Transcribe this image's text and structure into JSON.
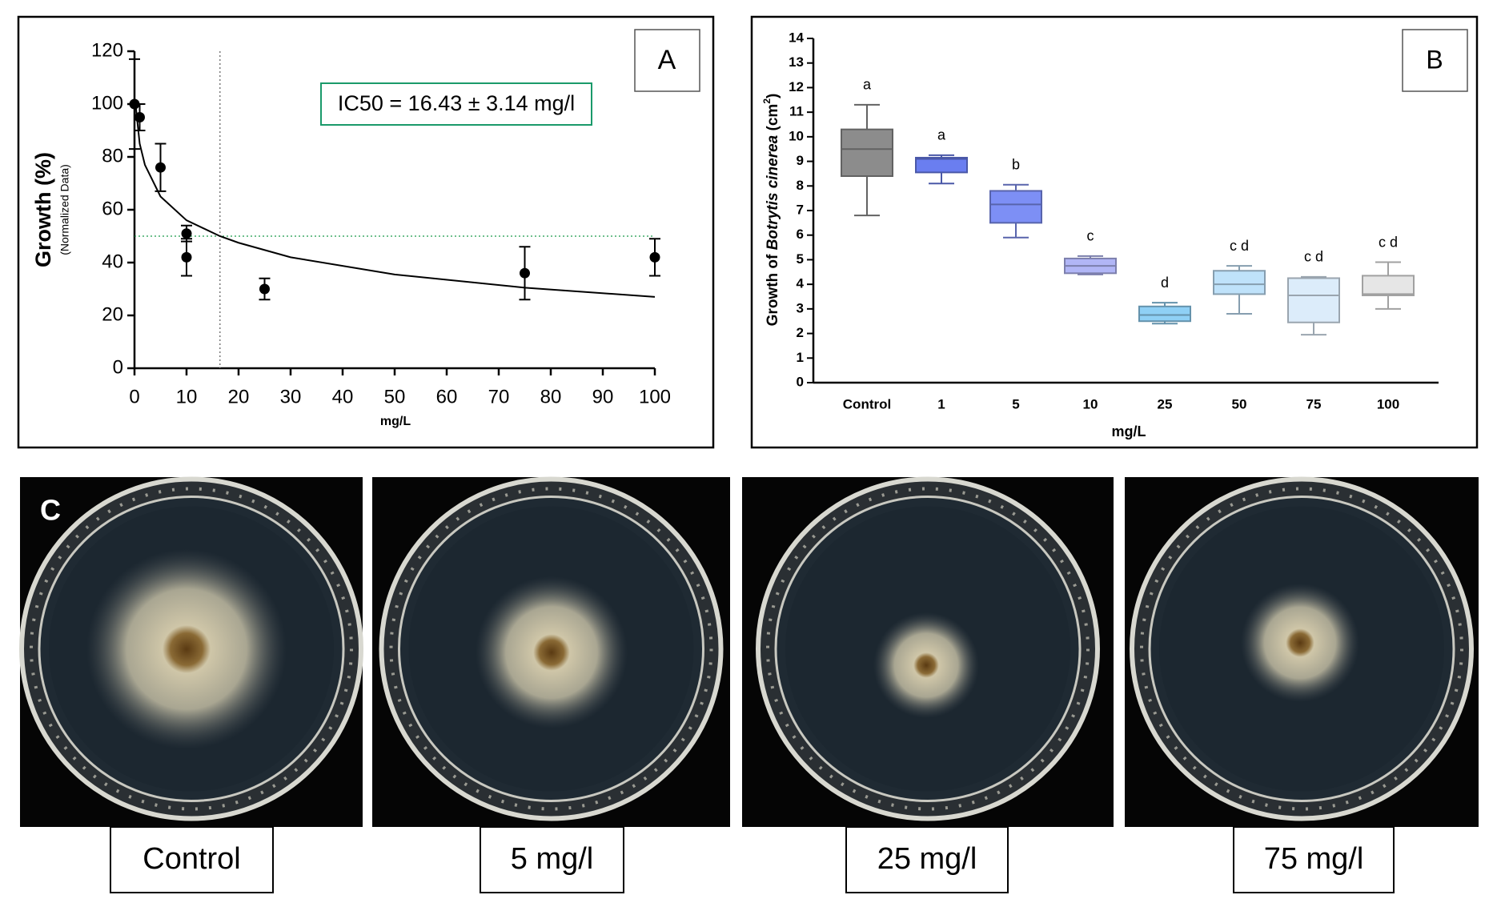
{
  "chart_data": [
    {
      "type": "scatter",
      "panel": "A",
      "ylabel": "Growth (%)",
      "ylabel_sub": "(Normalized Data)",
      "xlabel": "mg/L",
      "annotation": "IC50 = 16.43 ± 3.14 mg/l",
      "x": [
        0,
        1,
        5,
        10,
        10,
        25,
        75,
        100
      ],
      "values": [
        100,
        95,
        76,
        51,
        42,
        30,
        36,
        42
      ],
      "errors": [
        17,
        5,
        9,
        3,
        7,
        4,
        10,
        7
      ],
      "color": "#000000",
      "fit": {
        "x": [
          0.2,
          1,
          2,
          5,
          10,
          16.43,
          20,
          30,
          50,
          75,
          100
        ],
        "values": [
          100,
          85,
          77,
          65,
          56,
          50,
          47.5,
          42,
          35.5,
          30.5,
          27
        ]
      },
      "ref_x": 16.43,
      "ref_y": 50,
      "xlim": [
        0,
        100
      ],
      "ylim": [
        0,
        120
      ],
      "xticks": [
        0,
        10,
        20,
        30,
        40,
        50,
        60,
        70,
        80,
        90,
        100
      ],
      "yticks": [
        0,
        20,
        40,
        60,
        80,
        100,
        120
      ]
    },
    {
      "type": "box",
      "panel": "B",
      "ylabel": [
        "Growth of ",
        "Botrytis cinerea",
        " (cm",
        "2",
        ")"
      ],
      "xlabel": "mg/L",
      "categories": [
        "Control",
        "1",
        "5",
        "10",
        "25",
        "50",
        "75",
        "100"
      ],
      "min": [
        6.8,
        8.1,
        5.9,
        4.4,
        2.4,
        2.8,
        1.95,
        3.0
      ],
      "q1": [
        8.4,
        8.55,
        6.5,
        4.45,
        2.5,
        3.6,
        2.45,
        3.55
      ],
      "median": [
        9.5,
        9.1,
        7.25,
        4.75,
        2.75,
        4.0,
        3.55,
        3.6
      ],
      "q3": [
        10.3,
        9.15,
        7.8,
        5.05,
        3.1,
        4.55,
        4.25,
        4.35
      ],
      "max": [
        11.3,
        9.25,
        8.05,
        5.15,
        3.25,
        4.75,
        4.3,
        4.9
      ],
      "letters": [
        "a",
        "a",
        "b",
        "c",
        "d",
        "c d",
        "c d",
        "c d"
      ],
      "colors": [
        "#8c8c8c",
        "#6a7ef0",
        "#7d8ff5",
        "#b1b6f6",
        "#8fd0f5",
        "#bfe2fa",
        "#dcecfa",
        "#e6e6e6"
      ],
      "ylim": [
        0,
        14
      ],
      "yticks": [
        0,
        1,
        2,
        3,
        4,
        5,
        6,
        7,
        8,
        9,
        10,
        11,
        12,
        13,
        14
      ]
    }
  ],
  "panel_c": {
    "label": "C",
    "captions": [
      "Control",
      "5 mg/l",
      "25 mg/l",
      "75 mg/l"
    ]
  }
}
